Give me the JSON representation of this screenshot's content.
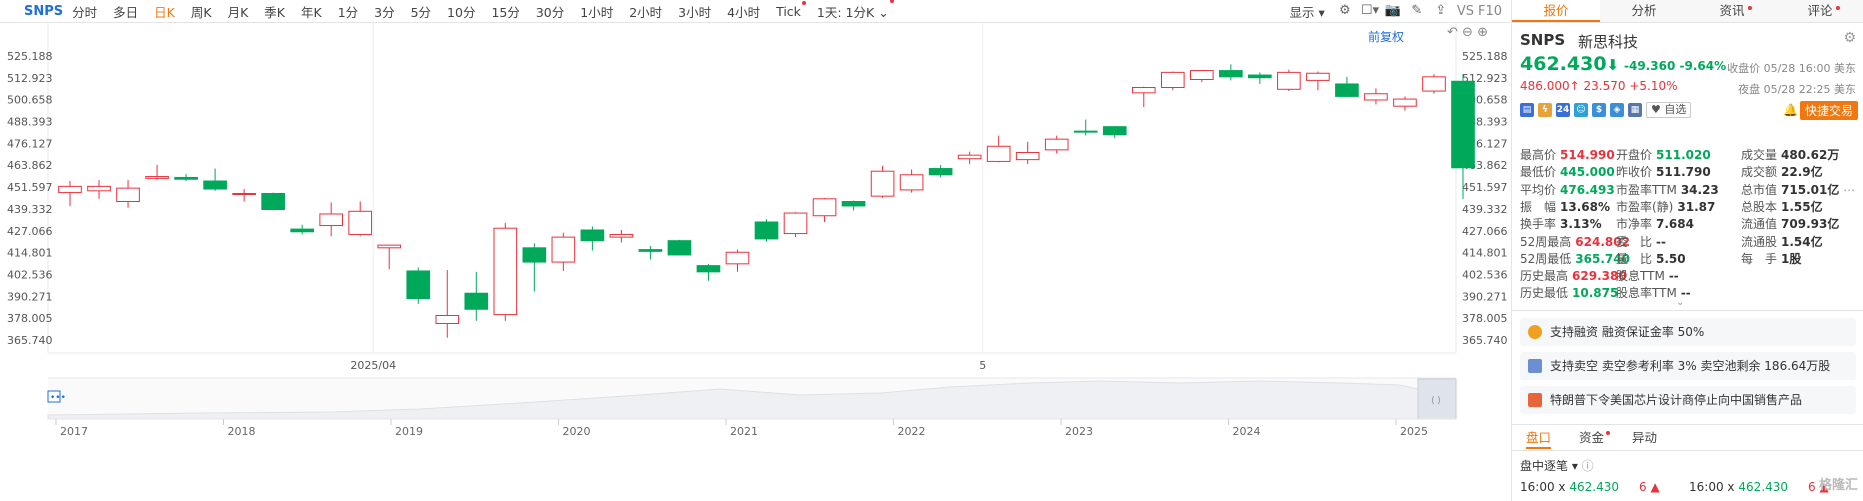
{
  "toolbar": {
    "symbol": "SNPS",
    "timeframes": [
      {
        "label": "分时",
        "active": false,
        "dot": false
      },
      {
        "label": "多日",
        "active": false,
        "dot": false
      },
      {
        "label": "日K",
        "active": true,
        "dot": false
      },
      {
        "label": "周K",
        "active": false,
        "dot": false
      },
      {
        "label": "月K",
        "active": false,
        "dot": false
      },
      {
        "label": "季K",
        "active": false,
        "dot": false
      },
      {
        "label": "年K",
        "active": false,
        "dot": false
      },
      {
        "label": "1分",
        "active": false,
        "dot": false
      },
      {
        "label": "3分",
        "active": false,
        "dot": false
      },
      {
        "label": "5分",
        "active": false,
        "dot": false
      },
      {
        "label": "10分",
        "active": false,
        "dot": false
      },
      {
        "label": "15分",
        "active": false,
        "dot": false
      },
      {
        "label": "30分",
        "active": false,
        "dot": false
      },
      {
        "label": "1小时",
        "active": false,
        "dot": false
      },
      {
        "label": "2小时",
        "active": false,
        "dot": false
      },
      {
        "label": "3小时",
        "active": false,
        "dot": false
      },
      {
        "label": "4小时",
        "active": false,
        "dot": false
      },
      {
        "label": "Tick",
        "active": false,
        "dot": true
      },
      {
        "label": "1天: 1分K",
        "active": false,
        "dot": true
      }
    ],
    "display_label": "显示",
    "vs_label": "VS",
    "f10_label": "F10"
  },
  "chart": {
    "adjust_label": "前复权",
    "y_ticks": [
      "525.188",
      "512.923",
      "500.658",
      "488.393",
      "476.127",
      "463.862",
      "451.597",
      "439.332",
      "427.066",
      "414.801",
      "402.536",
      "390.271",
      "378.005",
      "365.740"
    ],
    "x_labels": [
      {
        "label": "2025/04",
        "idx": 10
      },
      {
        "label": "5",
        "idx": 31
      }
    ],
    "colors": {
      "up": "#e8323c",
      "down": "#00a85a"
    },
    "candles": [
      {
        "o": 448.5,
        "h": 455.0,
        "l": 441.0,
        "c": 452.0
      },
      {
        "o": 449.5,
        "h": 455.5,
        "l": 445.0,
        "c": 452.0
      },
      {
        "o": 443.5,
        "h": 455.5,
        "l": 440.0,
        "c": 451.0
      },
      {
        "o": 456.5,
        "h": 464.0,
        "l": 455.5,
        "c": 457.5
      },
      {
        "o": 457.0,
        "h": 459.0,
        "l": 455.0,
        "c": 456.0
      },
      {
        "o": 455.0,
        "h": 462.0,
        "l": 449.5,
        "c": 450.5
      },
      {
        "o": 447.5,
        "h": 450.5,
        "l": 443.5,
        "c": 448.0
      },
      {
        "o": 448.0,
        "h": 448.5,
        "l": 438.5,
        "c": 439.0
      },
      {
        "o": 428.0,
        "h": 430.5,
        "l": 425.0,
        "c": 426.5
      },
      {
        "o": 430.0,
        "h": 443.0,
        "l": 424.0,
        "c": 436.5
      },
      {
        "o": 425.0,
        "h": 443.5,
        "l": 424.0,
        "c": 438.0
      },
      {
        "o": 417.5,
        "h": 419.0,
        "l": 405.5,
        "c": 419.0
      },
      {
        "o": 404.5,
        "h": 406.5,
        "l": 386.0,
        "c": 389.0
      },
      {
        "o": 375.0,
        "h": 405.0,
        "l": 367.0,
        "c": 379.5
      },
      {
        "o": 392.0,
        "h": 404.0,
        "l": 376.5,
        "c": 383.0
      },
      {
        "o": 380.0,
        "h": 431.5,
        "l": 376.5,
        "c": 428.5
      },
      {
        "o": 417.5,
        "h": 420.0,
        "l": 393.0,
        "c": 409.5
      },
      {
        "o": 409.5,
        "h": 426.0,
        "l": 404.5,
        "c": 423.5
      },
      {
        "o": 427.5,
        "h": 429.5,
        "l": 416.0,
        "c": 421.5
      },
      {
        "o": 423.5,
        "h": 427.5,
        "l": 420.5,
        "c": 425.0
      },
      {
        "o": 416.5,
        "h": 418.5,
        "l": 411.0,
        "c": 415.5
      },
      {
        "o": 421.5,
        "h": 422.0,
        "l": 413.5,
        "c": 413.5
      },
      {
        "o": 407.5,
        "h": 408.5,
        "l": 399.0,
        "c": 404.0
      },
      {
        "o": 408.5,
        "h": 416.5,
        "l": 404.0,
        "c": 415.0
      },
      {
        "o": 432.0,
        "h": 433.5,
        "l": 421.0,
        "c": 422.5
      },
      {
        "o": 425.5,
        "h": 437.5,
        "l": 423.5,
        "c": 437.0
      },
      {
        "o": 435.5,
        "h": 445.5,
        "l": 432.0,
        "c": 445.0
      },
      {
        "o": 443.5,
        "h": 444.0,
        "l": 438.5,
        "c": 441.0
      },
      {
        "o": 446.5,
        "h": 463.5,
        "l": 445.5,
        "c": 460.5
      },
      {
        "o": 450.0,
        "h": 461.5,
        "l": 448.5,
        "c": 458.5
      },
      {
        "o": 462.0,
        "h": 464.0,
        "l": 457.0,
        "c": 458.5
      },
      {
        "o": 467.5,
        "h": 471.5,
        "l": 464.5,
        "c": 469.5
      },
      {
        "o": 466.0,
        "h": 480.5,
        "l": 465.5,
        "c": 474.5
      },
      {
        "o": 467.0,
        "h": 477.0,
        "l": 464.5,
        "c": 471.0
      },
      {
        "o": 472.5,
        "h": 480.5,
        "l": 470.5,
        "c": 478.5
      },
      {
        "o": 483.0,
        "h": 489.5,
        "l": 480.5,
        "c": 482.5
      },
      {
        "o": 485.5,
        "h": 486.0,
        "l": 479.0,
        "c": 481.0
      },
      {
        "o": 504.5,
        "h": 508.0,
        "l": 496.5,
        "c": 507.5
      },
      {
        "o": 507.5,
        "h": 516.5,
        "l": 506.0,
        "c": 516.0
      },
      {
        "o": 512.0,
        "h": 517.0,
        "l": 510.5,
        "c": 517.0
      },
      {
        "o": 517.0,
        "h": 520.5,
        "l": 511.5,
        "c": 513.5
      },
      {
        "o": 514.5,
        "h": 516.0,
        "l": 509.5,
        "c": 513.0
      },
      {
        "o": 506.5,
        "h": 517.5,
        "l": 505.5,
        "c": 516.0
      },
      {
        "o": 511.5,
        "h": 516.5,
        "l": 506.0,
        "c": 515.5
      },
      {
        "o": 509.5,
        "h": 513.5,
        "l": 503.5,
        "c": 502.5
      },
      {
        "o": 500.5,
        "h": 507.0,
        "l": 498.0,
        "c": 504.0
      },
      {
        "o": 497.0,
        "h": 502.5,
        "l": 494.5,
        "c": 501.0
      },
      {
        "o": 505.5,
        "h": 515.0,
        "l": 504.0,
        "c": 513.5
      },
      {
        "o": 511.0,
        "h": 515.0,
        "l": 445.0,
        "c": 462.43
      }
    ],
    "nav_years": [
      "2017",
      "2018",
      "2019",
      "2020",
      "2021",
      "2022",
      "2023",
      "2024",
      "2025"
    ]
  },
  "panel": {
    "tabs": [
      {
        "label": "报价",
        "active": true,
        "dot": false
      },
      {
        "label": "分析",
        "active": false,
        "dot": false
      },
      {
        "label": "资讯",
        "active": false,
        "dot": true
      },
      {
        "label": "评论",
        "active": false,
        "dot": true
      }
    ],
    "symbol": "SNPS",
    "name": "新思科技",
    "price": "462.430",
    "change": "-49.360",
    "change_pct": "-9.64%",
    "close_note": "收盘价 05/28 16:00 美东",
    "post_price": "486.000",
    "post_change": "23.570",
    "post_pct": "+5.10%",
    "post_note": "夜盘 05/28 22:25 美东",
    "watch_label": "自选",
    "quick_trade_label": "快捷交易",
    "colors": {
      "up": "#e8323c",
      "down": "#00a85a",
      "accent": "#f0780f"
    },
    "stats": [
      [
        {
          "k": "最高价",
          "v": "514.990",
          "c": "up"
        },
        {
          "k": "开盘价",
          "v": "511.020",
          "c": "dn"
        },
        {
          "k": "成交量",
          "v": "480.62万",
          "c": ""
        }
      ],
      [
        {
          "k": "最低价",
          "v": "445.000",
          "c": "dn"
        },
        {
          "k": "昨收价",
          "v": "511.790",
          "c": ""
        },
        {
          "k": "成交额",
          "v": "22.9亿",
          "c": ""
        }
      ],
      [
        {
          "k": "平均价",
          "v": "476.493",
          "c": "dn"
        },
        {
          "k": "市盈率TTM",
          "v": "34.23",
          "c": ""
        },
        {
          "k": "总市值",
          "v": "715.01亿",
          "c": ""
        }
      ],
      [
        {
          "k": "振　幅",
          "v": "13.68%",
          "c": ""
        },
        {
          "k": "市盈率(静)",
          "v": "31.87",
          "c": ""
        },
        {
          "k": "总股本",
          "v": "1.55亿",
          "c": ""
        }
      ],
      [
        {
          "k": "换手率",
          "v": "3.13%",
          "c": ""
        },
        {
          "k": "市净率",
          "v": "7.684",
          "c": ""
        },
        {
          "k": "流通值",
          "v": "709.93亿",
          "c": ""
        }
      ],
      [
        {
          "k": "52周最高",
          "v": "624.802",
          "c": "up"
        },
        {
          "k": "委　比",
          "v": "--",
          "c": ""
        },
        {
          "k": "流通股",
          "v": "1.54亿",
          "c": ""
        }
      ],
      [
        {
          "k": "52周最低",
          "v": "365.740",
          "c": "dn"
        },
        {
          "k": "量　比",
          "v": "5.50",
          "c": ""
        },
        {
          "k": "每　手",
          "v": "1股",
          "c": ""
        }
      ],
      [
        {
          "k": "历史最高",
          "v": "629.380",
          "c": "up"
        },
        {
          "k": "股息TTM",
          "v": "--",
          "c": ""
        }
      ],
      [
        {
          "k": "历史最低",
          "v": "10.875",
          "c": "dn"
        },
        {
          "k": "股息率TTM",
          "v": "--",
          "c": ""
        }
      ]
    ],
    "info_rows": [
      "支持融资 融资保证金率 50%",
      "支持卖空 卖空参考利率 3% 卖空池剩余 186.64万股",
      "特朗普下令美国芯片设计商停止向中国销售产品"
    ],
    "bottom_tabs": [
      {
        "label": "盘口",
        "active": true,
        "dot": false
      },
      {
        "label": "资金",
        "active": false,
        "dot": true
      },
      {
        "label": "异动",
        "active": false,
        "dot": false
      }
    ],
    "ticks_title": "盘中逐笔",
    "tick_row": {
      "time": "16:00",
      "x": "x",
      "price": "462.430",
      "qty": "6"
    },
    "watermark": "格隆汇"
  }
}
